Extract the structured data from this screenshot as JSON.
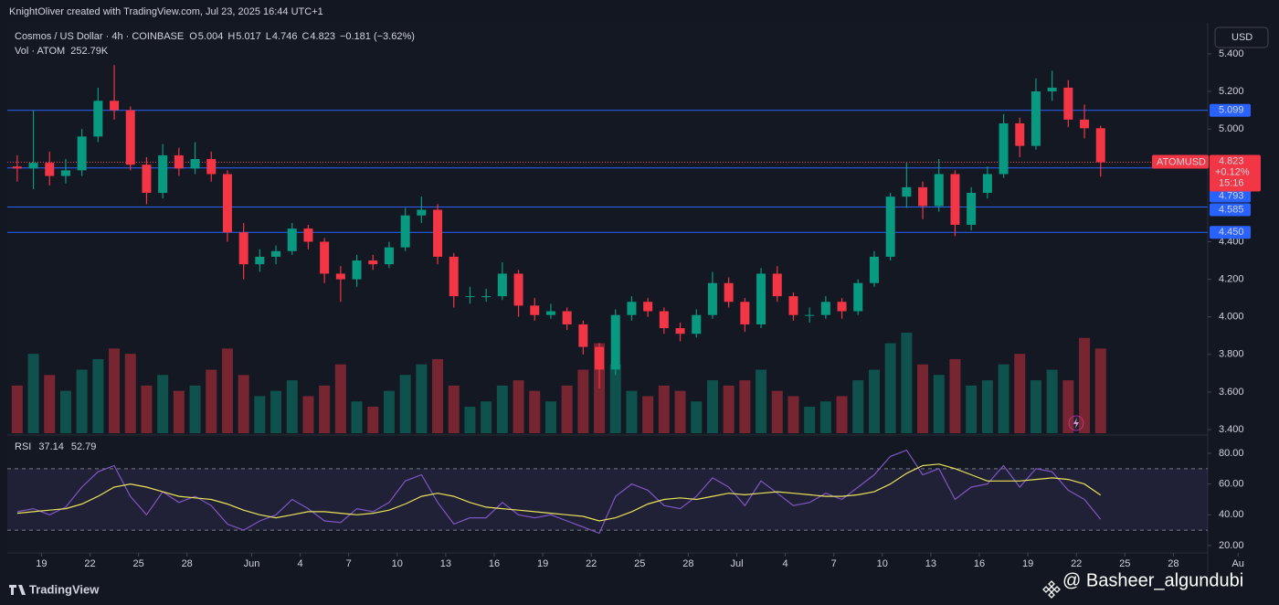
{
  "header": {
    "credit": "KnightOliver created with TradingView.com, Jul 23, 2025 16:44 UTC+1"
  },
  "legend": {
    "symbol": "Cosmos / US Dollar · 4h · COINBASE",
    "ohlc": [
      {
        "label": "O",
        "value": 5.004
      },
      {
        "label": "H",
        "value": 5.017
      },
      {
        "label": "L",
        "value": 4.746
      },
      {
        "label": "C",
        "value": 4.823
      }
    ],
    "change": "−0.181 (−3.62%)",
    "volume_name": "Vol · ATOM",
    "volume_value": "252.79K"
  },
  "currency": "USD",
  "last_price": {
    "symbol": "ATOMUSD",
    "value": 4.823,
    "change": "+0.12%",
    "countdown": "15:16"
  },
  "footer": {
    "brand": "TradingView",
    "watermark": "@ Basheer_algundubi"
  },
  "chart_data": [
    {
      "type": "candlestick",
      "up_color": "#089981",
      "down_color": "#f23645",
      "categories": [
        "2025-05-17",
        "2025-05-18",
        "2025-05-19",
        "2025-05-20",
        "2025-05-21",
        "2025-05-22",
        "2025-05-23",
        "2025-05-24",
        "2025-05-25",
        "2025-05-26",
        "2025-05-27",
        "2025-05-28",
        "2025-05-29",
        "2025-05-30",
        "2025-05-31",
        "2025-06-01",
        "2025-06-02",
        "2025-06-03",
        "2025-06-04",
        "2025-06-05",
        "2025-06-06",
        "2025-06-07",
        "2025-06-08",
        "2025-06-09",
        "2025-06-10",
        "2025-06-11",
        "2025-06-12",
        "2025-06-13",
        "2025-06-14",
        "2025-06-15",
        "2025-06-16",
        "2025-06-17",
        "2025-06-18",
        "2025-06-19",
        "2025-06-20",
        "2025-06-21",
        "2025-06-22",
        "2025-06-23",
        "2025-06-24",
        "2025-06-25",
        "2025-06-26",
        "2025-06-27",
        "2025-06-28",
        "2025-06-29",
        "2025-06-30",
        "2025-07-01",
        "2025-07-02",
        "2025-07-03",
        "2025-07-04",
        "2025-07-05",
        "2025-07-06",
        "2025-07-07",
        "2025-07-08",
        "2025-07-09",
        "2025-07-10",
        "2025-07-11",
        "2025-07-12",
        "2025-07-13",
        "2025-07-14",
        "2025-07-15",
        "2025-07-16",
        "2025-07-17",
        "2025-07-18",
        "2025-07-19",
        "2025-07-20",
        "2025-07-21",
        "2025-07-22",
        "2025-07-23"
      ],
      "open": [
        4.8,
        4.79,
        4.82,
        4.75,
        4.78,
        4.96,
        5.15,
        5.1,
        4.81,
        4.66,
        4.86,
        4.79,
        4.84,
        4.76,
        4.45,
        4.28,
        4.32,
        4.35,
        4.47,
        4.4,
        4.23,
        4.2,
        4.3,
        4.28,
        4.37,
        4.54,
        4.57,
        4.32,
        4.11,
        4.11,
        4.11,
        4.23,
        4.06,
        4.01,
        4.03,
        3.96,
        3.84,
        3.72,
        4.01,
        4.08,
        4.03,
        3.94,
        3.91,
        4.01,
        4.18,
        4.08,
        3.96,
        4.23,
        4.11,
        4.01,
        4.01,
        4.08,
        4.03,
        4.18,
        4.32,
        4.64,
        4.69,
        4.59,
        4.76,
        4.49,
        4.66,
        4.76,
        5.03,
        4.91,
        5.2,
        5.22,
        5.05,
        5.004
      ],
      "high": [
        4.86,
        5.1,
        4.88,
        4.84,
        5.0,
        5.22,
        5.34,
        5.12,
        4.85,
        4.92,
        4.9,
        4.93,
        4.88,
        4.78,
        4.5,
        4.36,
        4.38,
        4.5,
        4.49,
        4.42,
        4.27,
        4.33,
        4.33,
        4.4,
        4.58,
        4.64,
        4.6,
        4.34,
        4.16,
        4.15,
        4.29,
        4.25,
        4.1,
        4.07,
        4.05,
        3.98,
        3.86,
        4.04,
        4.11,
        4.1,
        4.05,
        3.97,
        4.04,
        4.24,
        4.21,
        4.1,
        4.26,
        4.27,
        4.13,
        4.05,
        4.11,
        4.1,
        4.2,
        4.35,
        4.66,
        4.82,
        4.72,
        4.84,
        4.78,
        4.69,
        4.8,
        5.08,
        5.06,
        5.27,
        5.31,
        5.26,
        5.13,
        5.017
      ],
      "low": [
        4.72,
        4.68,
        4.7,
        4.71,
        4.75,
        4.93,
        5.05,
        4.78,
        4.6,
        4.63,
        4.75,
        4.76,
        4.72,
        4.4,
        4.2,
        4.24,
        4.28,
        4.33,
        4.36,
        4.18,
        4.08,
        4.16,
        4.25,
        4.26,
        4.35,
        4.5,
        4.28,
        4.05,
        4.07,
        4.08,
        4.09,
        4.0,
        3.98,
        3.99,
        3.93,
        3.8,
        3.62,
        3.69,
        3.98,
        4.0,
        3.91,
        3.87,
        3.89,
        3.99,
        4.05,
        3.92,
        3.94,
        4.08,
        3.98,
        3.97,
        3.99,
        3.99,
        4.01,
        4.16,
        4.3,
        4.58,
        4.52,
        4.56,
        4.43,
        4.46,
        4.63,
        4.74,
        4.85,
        4.89,
        5.15,
        5.01,
        4.95,
        4.746
      ],
      "close": [
        4.79,
        4.82,
        4.75,
        4.78,
        4.96,
        5.15,
        5.1,
        4.81,
        4.66,
        4.86,
        4.79,
        4.84,
        4.76,
        4.45,
        4.28,
        4.32,
        4.35,
        4.47,
        4.4,
        4.23,
        4.2,
        4.3,
        4.28,
        4.37,
        4.54,
        4.57,
        4.32,
        4.11,
        4.11,
        4.11,
        4.23,
        4.06,
        4.01,
        4.03,
        3.96,
        3.84,
        3.72,
        4.01,
        4.08,
        4.03,
        3.94,
        3.91,
        4.01,
        4.18,
        4.08,
        3.96,
        4.23,
        4.11,
        4.01,
        4.01,
        4.08,
        4.03,
        4.18,
        4.32,
        4.64,
        4.69,
        4.59,
        4.76,
        4.49,
        4.66,
        4.76,
        5.03,
        4.91,
        5.2,
        5.22,
        5.05,
        5.004,
        4.823
      ],
      "volume": [
        900,
        1500,
        1100,
        800,
        1200,
        1400,
        1600,
        1500,
        900,
        1100,
        800,
        900,
        1200,
        1600,
        1100,
        700,
        800,
        1000,
        700,
        900,
        1300,
        600,
        500,
        800,
        1100,
        1300,
        1400,
        900,
        500,
        600,
        900,
        1000,
        800,
        600,
        900,
        1200,
        1700,
        1300,
        800,
        700,
        900,
        800,
        600,
        1000,
        900,
        1000,
        1200,
        800,
        700,
        500,
        600,
        700,
        1000,
        1200,
        1700,
        1900,
        1300,
        1100,
        1400,
        900,
        1000,
        1300,
        1500,
        1000,
        1200,
        1000,
        1800,
        1600
      ],
      "ylim": [
        3.376,
        5.565
      ],
      "yticks": [
        {
          "value": 5.4,
          "label": "5.400"
        },
        {
          "value": 5.2,
          "label": "5.200"
        },
        {
          "value": 5.0,
          "label": "5.000"
        },
        {
          "value": 4.4,
          "label": "4.400"
        },
        {
          "value": 4.2,
          "label": "4.200"
        },
        {
          "value": 4.0,
          "label": "4.000"
        },
        {
          "value": 3.8,
          "label": "3.800"
        },
        {
          "value": 3.6,
          "label": "3.600"
        },
        {
          "value": 3.4,
          "label": "3.400"
        }
      ],
      "hlines": [
        {
          "value": 5.099,
          "label": "5.099",
          "color": "#2962ff"
        },
        {
          "value": 4.793,
          "label": "4.793",
          "color": "#2962ff"
        },
        {
          "value": 4.585,
          "label": "4.585",
          "color": "#2962ff"
        },
        {
          "value": 4.45,
          "label": "4.450",
          "color": "#2962ff"
        }
      ],
      "xticks": [
        {
          "value": "2025-05-19",
          "label": "19"
        },
        {
          "value": "2025-05-22",
          "label": "22"
        },
        {
          "value": "2025-05-25",
          "label": "25"
        },
        {
          "value": "2025-05-28",
          "label": "28"
        },
        {
          "value": "2025-06-01",
          "label": "Jun"
        },
        {
          "value": "2025-06-04",
          "label": "4"
        },
        {
          "value": "2025-06-07",
          "label": "7"
        },
        {
          "value": "2025-06-10",
          "label": "10"
        },
        {
          "value": "2025-06-13",
          "label": "13"
        },
        {
          "value": "2025-06-16",
          "label": "16"
        },
        {
          "value": "2025-06-19",
          "label": "19"
        },
        {
          "value": "2025-06-22",
          "label": "22"
        },
        {
          "value": "2025-06-25",
          "label": "25"
        },
        {
          "value": "2025-06-28",
          "label": "28"
        },
        {
          "value": "2025-07-01",
          "label": "Jul"
        },
        {
          "value": "2025-07-04",
          "label": "4"
        },
        {
          "value": "2025-07-07",
          "label": "7"
        },
        {
          "value": "2025-07-10",
          "label": "10"
        },
        {
          "value": "2025-07-13",
          "label": "13"
        },
        {
          "value": "2025-07-16",
          "label": "16"
        },
        {
          "value": "2025-07-19",
          "label": "19"
        },
        {
          "value": "2025-07-22",
          "label": "22"
        },
        {
          "value": "2025-07-25",
          "label": "25"
        },
        {
          "value": "2025-07-28",
          "label": "28"
        },
        {
          "value": "2025-08-01",
          "label": "Au"
        }
      ]
    },
    {
      "type": "line",
      "title": "RSI",
      "series": [
        {
          "name": 37.14,
          "color": "#7e57c2",
          "values": [
            42,
            44,
            40,
            45,
            58,
            68,
            72,
            52,
            40,
            55,
            48,
            52,
            46,
            34,
            30,
            36,
            40,
            50,
            44,
            36,
            35,
            44,
            42,
            48,
            62,
            66,
            48,
            34,
            38,
            38,
            48,
            40,
            38,
            40,
            36,
            32,
            28,
            52,
            60,
            56,
            46,
            44,
            52,
            64,
            58,
            46,
            62,
            54,
            46,
            48,
            54,
            50,
            58,
            66,
            78,
            82,
            66,
            70,
            50,
            58,
            60,
            72,
            58,
            70,
            68,
            56,
            50,
            37.14
          ]
        },
        {
          "name": 52.79,
          "color": "#e8e35a",
          "values": [
            41,
            42,
            43,
            44,
            47,
            52,
            58,
            60,
            58,
            55,
            52,
            51,
            50,
            47,
            43,
            40,
            38,
            40,
            42,
            42,
            41,
            40,
            41,
            43,
            47,
            52,
            54,
            52,
            48,
            45,
            44,
            43,
            42,
            41,
            40,
            39,
            36,
            38,
            42,
            47,
            50,
            51,
            50,
            52,
            54,
            53,
            54,
            55,
            54,
            53,
            52,
            52,
            53,
            55,
            60,
            67,
            72,
            73,
            70,
            66,
            62,
            62,
            62,
            63,
            64,
            63,
            60,
            52.79
          ]
        }
      ],
      "ylim": [
        15.2,
        90.7
      ],
      "yticks": [
        {
          "value": 80,
          "label": "80.00"
        },
        {
          "value": 60,
          "label": "60.00"
        },
        {
          "value": 40,
          "label": "40.00"
        },
        {
          "value": 20,
          "label": "20.00"
        }
      ],
      "band": [
        30,
        70
      ]
    }
  ]
}
